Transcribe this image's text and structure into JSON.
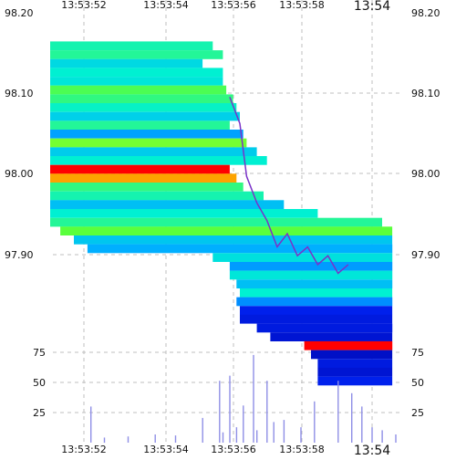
{
  "colors": {
    "background": "#ffffff",
    "grid": "#bfbfbf",
    "axis_text": "#111111",
    "volume_line": "#8f8fe6",
    "trade_line": "#7a32c8"
  },
  "chart_data": [
    {
      "type": "heatmap",
      "panel": "order-book-depth",
      "title": "",
      "xlabel": "",
      "ylabel": "",
      "x_range": [
        "13:53:50.7",
        "13:54:01.2"
      ],
      "ylim": [
        97.815,
        98.2
      ],
      "grid": true,
      "x_ticks": [
        "13:53:52",
        "13:53:54",
        "13:53:56",
        "13:53:58",
        "13:54"
      ],
      "y_ticks": [
        "98.20",
        "98.10",
        "98.00",
        "97.90"
      ],
      "levels": [
        {
          "price": 98.148,
          "start": "13:53:50.7",
          "end": "13:53:55.5",
          "intensity": 0.58
        },
        {
          "price": 98.138,
          "start": "13:53:50.7",
          "end": "13:53:55.8",
          "intensity": 0.6
        },
        {
          "price": 98.128,
          "start": "13:53:50.7",
          "end": "13:53:55.2",
          "intensity": 0.48
        },
        {
          "price": 98.118,
          "start": "13:53:50.7",
          "end": "13:53:55.8",
          "intensity": 0.55
        },
        {
          "price": 98.108,
          "start": "13:53:50.7",
          "end": "13:53:55.8",
          "intensity": 0.52
        },
        {
          "price": 98.098,
          "start": "13:53:50.7",
          "end": "13:53:55.9",
          "intensity": 0.66
        },
        {
          "price": 98.088,
          "start": "13:53:50.7",
          "end": "13:53:56.1",
          "intensity": 0.62
        },
        {
          "price": 98.078,
          "start": "13:53:50.7",
          "end": "13:53:56.2",
          "intensity": 0.56
        },
        {
          "price": 98.068,
          "start": "13:53:50.7",
          "end": "13:53:56.3",
          "intensity": 0.45
        },
        {
          "price": 98.058,
          "start": "13:53:50.7",
          "end": "13:53:56.0",
          "intensity": 0.6
        },
        {
          "price": 98.048,
          "start": "13:53:50.7",
          "end": "13:53:56.4",
          "intensity": 0.33
        },
        {
          "price": 98.038,
          "start": "13:53:50.7",
          "end": "13:53:56.5",
          "intensity": 0.7
        },
        {
          "price": 98.028,
          "start": "13:53:50.7",
          "end": "13:53:56.8",
          "intensity": 0.44
        },
        {
          "price": 98.018,
          "start": "13:53:50.7",
          "end": "13:53:57.1",
          "intensity": 0.55
        },
        {
          "price": 98.008,
          "start": "13:53:50.7",
          "end": "13:53:56.0",
          "intensity": 1.0
        },
        {
          "price": 97.998,
          "start": "13:53:50.7",
          "end": "13:53:56.2",
          "intensity": 0.88
        },
        {
          "price": 97.988,
          "start": "13:53:50.7",
          "end": "13:53:56.4",
          "intensity": 0.62
        },
        {
          "price": 97.978,
          "start": "13:53:50.7",
          "end": "13:53:57.0",
          "intensity": 0.58
        },
        {
          "price": 97.968,
          "start": "13:53:50.7",
          "end": "13:53:57.6",
          "intensity": 0.4
        },
        {
          "price": 97.958,
          "start": "13:53:50.7",
          "end": "13:53:58.6",
          "intensity": 0.55
        },
        {
          "price": 97.948,
          "start": "13:53:50.7",
          "end": "13:54:00.5",
          "intensity": 0.6
        },
        {
          "price": 97.938,
          "start": "13:53:51.0",
          "end": "13:54:00.8",
          "intensity": 0.68
        },
        {
          "price": 97.928,
          "start": "13:53:51.4",
          "end": "13:54:00.8",
          "intensity": 0.42
        },
        {
          "price": 97.918,
          "start": "13:53:51.8",
          "end": "13:54:00.8",
          "intensity": 0.35
        },
        {
          "price": 97.908,
          "start": "13:53:55.5",
          "end": "13:54:00.8",
          "intensity": 0.5
        },
        {
          "price": 97.898,
          "start": "13:53:56.0",
          "end": "13:54:00.8",
          "intensity": 0.32
        },
        {
          "price": 97.888,
          "start": "13:53:56.0",
          "end": "13:54:00.8",
          "intensity": 0.52
        },
        {
          "price": 97.878,
          "start": "13:53:56.2",
          "end": "13:54:00.8",
          "intensity": 0.4
        },
        {
          "price": 97.868,
          "start": "13:53:56.3",
          "end": "13:54:00.8",
          "intensity": 0.55
        },
        {
          "price": 97.858,
          "start": "13:53:56.2",
          "end": "13:54:00.8",
          "intensity": 0.3
        },
        {
          "price": 97.848,
          "start": "13:53:56.3",
          "end": "13:54:00.8",
          "intensity": 0.12
        },
        {
          "price": 97.838,
          "start": "13:53:56.3",
          "end": "13:54:00.8",
          "intensity": 0.1
        },
        {
          "price": 97.828,
          "start": "13:53:56.8",
          "end": "13:54:00.8",
          "intensity": 0.1
        },
        {
          "price": 97.818,
          "start": "13:53:57.2",
          "end": "13:54:00.8",
          "intensity": 0.08
        },
        {
          "price": 97.808,
          "start": "13:53:58.2",
          "end": "13:54:00.8",
          "intensity": 1.0
        },
        {
          "price": 97.798,
          "start": "13:53:58.4",
          "end": "13:54:00.8",
          "intensity": 0.06
        },
        {
          "price": 97.788,
          "start": "13:53:58.6",
          "end": "13:54:00.8",
          "intensity": 0.1
        },
        {
          "price": 97.778,
          "start": "13:53:58.6",
          "end": "13:54:00.8",
          "intensity": 0.08
        },
        {
          "price": 97.768,
          "start": "13:53:58.6",
          "end": "13:54:00.8",
          "intensity": 0.12
        }
      ],
      "trade_price_line": [
        {
          "t": "13:53:56.0",
          "price": 98.09
        },
        {
          "t": "13:53:56.3",
          "price": 98.06
        },
        {
          "t": "13:53:56.5",
          "price": 98.0
        },
        {
          "t": "13:53:56.8",
          "price": 97.97
        },
        {
          "t": "13:53:57.1",
          "price": 97.95
        },
        {
          "t": "13:53:57.4",
          "price": 97.92
        },
        {
          "t": "13:53:57.7",
          "price": 97.935
        },
        {
          "t": "13:53:58.0",
          "price": 97.91
        },
        {
          "t": "13:53:58.3",
          "price": 97.92
        },
        {
          "t": "13:53:58.6",
          "price": 97.9
        },
        {
          "t": "13:53:58.9",
          "price": 97.91
        },
        {
          "t": "13:53:59.2",
          "price": 97.89
        },
        {
          "t": "13:53:59.5",
          "price": 97.9
        }
      ]
    },
    {
      "type": "bar",
      "panel": "volume",
      "title": "",
      "xlabel": "",
      "ylabel": "",
      "x_range": [
        "13:53:50.7",
        "13:54:01.2"
      ],
      "ylim": [
        0,
        100
      ],
      "grid": true,
      "x_ticks": [
        "13:53:52",
        "13:53:54",
        "13:53:56",
        "13:53:58",
        "13:54"
      ],
      "y_ticks": [
        "75",
        "50",
        "25"
      ],
      "bars": [
        {
          "t": "13:53:51.9",
          "value": 35
        },
        {
          "t": "13:53:52.3",
          "value": 5
        },
        {
          "t": "13:53:53.0",
          "value": 6
        },
        {
          "t": "13:53:53.8",
          "value": 8
        },
        {
          "t": "13:53:54.4",
          "value": 7
        },
        {
          "t": "13:53:55.2",
          "value": 24
        },
        {
          "t": "13:53:55.7",
          "value": 60
        },
        {
          "t": "13:53:55.8",
          "value": 10
        },
        {
          "t": "13:53:56.0",
          "value": 65
        },
        {
          "t": "13:53:56.2",
          "value": 15
        },
        {
          "t": "13:53:56.4",
          "value": 36
        },
        {
          "t": "13:53:56.7",
          "value": 85
        },
        {
          "t": "13:53:56.8",
          "value": 12
        },
        {
          "t": "13:53:57.1",
          "value": 60
        },
        {
          "t": "13:53:57.3",
          "value": 20
        },
        {
          "t": "13:53:57.6",
          "value": 22
        },
        {
          "t": "13:53:58.1",
          "value": 15
        },
        {
          "t": "13:53:58.5",
          "value": 40
        },
        {
          "t": "13:53:59.2",
          "value": 60
        },
        {
          "t": "13:53:59.6",
          "value": 48
        },
        {
          "t": "13:53:59.9",
          "value": 35
        },
        {
          "t": "13:54:00.2",
          "value": 15
        },
        {
          "t": "13:54:00.5",
          "value": 12
        },
        {
          "t": "13:54:00.9",
          "value": 8
        }
      ]
    }
  ]
}
